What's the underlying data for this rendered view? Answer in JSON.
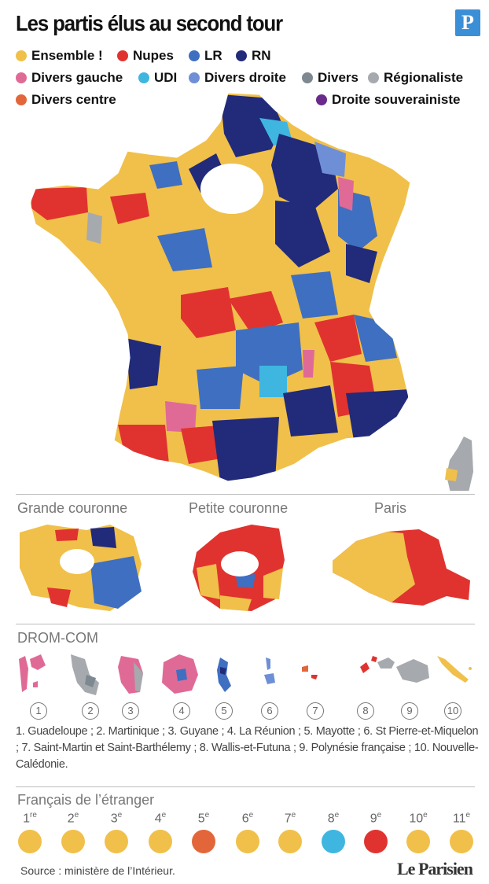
{
  "title": "Les partis élus au second tour",
  "logo_letter": "P",
  "colors": {
    "ensemble": "#f0c04a",
    "nupes": "#e0332f",
    "lr": "#3f6fc0",
    "rn": "#222a7a",
    "divers_gauche": "#e06a96",
    "udi": "#3fb6e0",
    "divers_droite": "#6e8fd6",
    "divers": "#7d8890",
    "regionaliste": "#a6a9ad",
    "divers_centre": "#e3663a",
    "droite_souverainiste": "#6a2a8c"
  },
  "legend": [
    {
      "label": "Ensemble !",
      "color": "#f0c04a"
    },
    {
      "label": "Nupes",
      "color": "#e0332f"
    },
    {
      "label": "LR",
      "color": "#3f6fc0"
    },
    {
      "label": "RN",
      "color": "#222a7a"
    },
    {
      "label": "Divers gauche",
      "color": "#e06a96"
    },
    {
      "label": "UDI",
      "color": "#3fb6e0"
    },
    {
      "label": "Divers droite",
      "color": "#6e8fd6"
    },
    {
      "label": "Divers",
      "color": "#7d8890"
    },
    {
      "label": "Régionaliste",
      "color": "#a6a9ad"
    },
    {
      "label": "Divers centre",
      "color": "#e3663a"
    },
    {
      "label": "Droite souverainiste",
      "color": "#6a2a8c"
    }
  ],
  "sections": {
    "grande_couronne": "Grande couronne",
    "petite_couronne": "Petite couronne",
    "paris": "Paris",
    "drom_com": "DROM-COM",
    "francais_etranger": "Français de l’étranger"
  },
  "drom": {
    "numbers": [
      "1",
      "2",
      "3",
      "4",
      "5",
      "6",
      "7",
      "8",
      "9",
      "10"
    ],
    "caption": "1. Guadeloupe ; 2. Martinique ; 3. Guyane ; 4. La Réunion ; 5. Mayotte ; 6. St Pierre-et-Miquelon ; 7. Saint-Martin et Saint-Barthélemy ; 8. Wallis-et-Futuna ; 9. Polynésie française ; 10. Nouvelle-Calédonie."
  },
  "etranger": [
    {
      "num": "1",
      "suffix": "re",
      "color": "#f0c04a"
    },
    {
      "num": "2",
      "suffix": "e",
      "color": "#f0c04a"
    },
    {
      "num": "3",
      "suffix": "e",
      "color": "#f0c04a"
    },
    {
      "num": "4",
      "suffix": "e",
      "color": "#f0c04a"
    },
    {
      "num": "5",
      "suffix": "e",
      "color": "#e3663a"
    },
    {
      "num": "6",
      "suffix": "e",
      "color": "#f0c04a"
    },
    {
      "num": "7",
      "suffix": "e",
      "color": "#f0c04a"
    },
    {
      "num": "8",
      "suffix": "e",
      "color": "#3fb6e0"
    },
    {
      "num": "9",
      "suffix": "e",
      "color": "#e0332f"
    },
    {
      "num": "10",
      "suffix": "e",
      "color": "#f0c04a"
    },
    {
      "num": "11",
      "suffix": "e",
      "color": "#f0c04a"
    }
  ],
  "source": "Source : ministère de l’Intérieur.",
  "brand": "Le Parisien"
}
